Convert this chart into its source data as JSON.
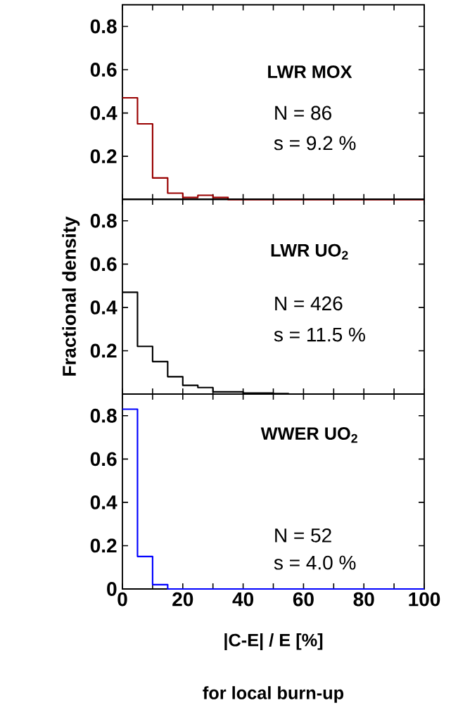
{
  "chart_data": [
    {
      "type": "histogram",
      "title": "LWR MOX",
      "annotations": [
        "N = 86",
        "s = 9.2 %"
      ],
      "color": "#990000",
      "bins": [
        0,
        5,
        10,
        15,
        20,
        25,
        30,
        35,
        40,
        45,
        50,
        55,
        60,
        65,
        70,
        75,
        80,
        85,
        90,
        95,
        100
      ],
      "values": [
        0.47,
        0.35,
        0.1,
        0.03,
        0.01,
        0.02,
        0.01,
        0,
        0,
        0,
        0,
        0,
        0,
        0,
        0,
        0,
        0,
        0,
        0,
        0
      ],
      "xlim": [
        0,
        100
      ],
      "ylim": [
        0,
        0.9
      ],
      "xticks": [
        {
          "value": 0,
          "label": null
        },
        {
          "value": 10,
          "label": null
        },
        {
          "value": 20,
          "label": null
        },
        {
          "value": 30,
          "label": null
        },
        {
          "value": 40,
          "label": null
        },
        {
          "value": 50,
          "label": null
        },
        {
          "value": 60,
          "label": null
        },
        {
          "value": 70,
          "label": null
        },
        {
          "value": 80,
          "label": null
        },
        {
          "value": 90,
          "label": null
        },
        {
          "value": 100,
          "label": null
        }
      ],
      "yticks": [
        0.2,
        0.4,
        0.6,
        0.8
      ],
      "tick_labels": "y"
    },
    {
      "type": "histogram",
      "title": "LWR UO$_{2}$",
      "annotations": [
        "N = 426",
        "s = 11.5 %"
      ],
      "color": "#000000",
      "ylabel": "Fractional density",
      "bins": [
        0,
        5,
        10,
        15,
        20,
        25,
        30,
        35,
        40,
        45,
        50,
        55,
        60,
        65,
        70,
        75,
        80,
        85,
        90,
        95,
        100
      ],
      "values": [
        0.47,
        0.22,
        0.15,
        0.08,
        0.04,
        0.03,
        0.01,
        0.01,
        0.005,
        0.005,
        0.002,
        0,
        0,
        0,
        0,
        0,
        0,
        0,
        0,
        0
      ],
      "xlim": [
        0,
        100
      ],
      "ylim": [
        0,
        0.9
      ],
      "xticks": [
        {
          "value": 0,
          "label": null
        },
        {
          "value": 10,
          "label": null
        },
        {
          "value": 20,
          "label": null
        },
        {
          "value": 30,
          "label": null
        },
        {
          "value": 40,
          "label": null
        },
        {
          "value": 50,
          "label": null
        },
        {
          "value": 60,
          "label": null
        },
        {
          "value": 70,
          "label": null
        },
        {
          "value": 80,
          "label": null
        },
        {
          "value": 90,
          "label": null
        },
        {
          "value": 100,
          "label": null
        }
      ],
      "yticks": [
        0.2,
        0.4,
        0.6,
        0.8
      ],
      "tick_labels": "y"
    },
    {
      "type": "histogram",
      "title": "WWER UO$_{2}$",
      "annotations": [
        "N = 52",
        "s = 4.0 %",
        "for local burn-up"
      ],
      "color": "#0000ff",
      "xlabel": "|C-E| / E  [%]",
      "bins": [
        0,
        5,
        10,
        15,
        20,
        25,
        30,
        35,
        40,
        45,
        50,
        55,
        60,
        65,
        70,
        75,
        80,
        85,
        90,
        95,
        100
      ],
      "values": [
        0.83,
        0.15,
        0.02,
        0,
        0,
        0,
        0,
        0,
        0,
        0,
        0,
        0,
        0,
        0,
        0,
        0,
        0,
        0,
        0,
        0
      ],
      "xlim": [
        0,
        100
      ],
      "ylim": [
        0,
        0.9
      ],
      "xticks": [
        0,
        {
          "value": 10,
          "label": null
        },
        20,
        {
          "value": 30,
          "label": null
        },
        40,
        {
          "value": 50,
          "label": null
        },
        60,
        {
          "value": 70,
          "label": null
        },
        80,
        {
          "value": 90,
          "label": null
        },
        100
      ],
      "yticks": [
        0,
        0.2,
        0.4,
        0.6,
        0.8
      ]
    }
  ]
}
